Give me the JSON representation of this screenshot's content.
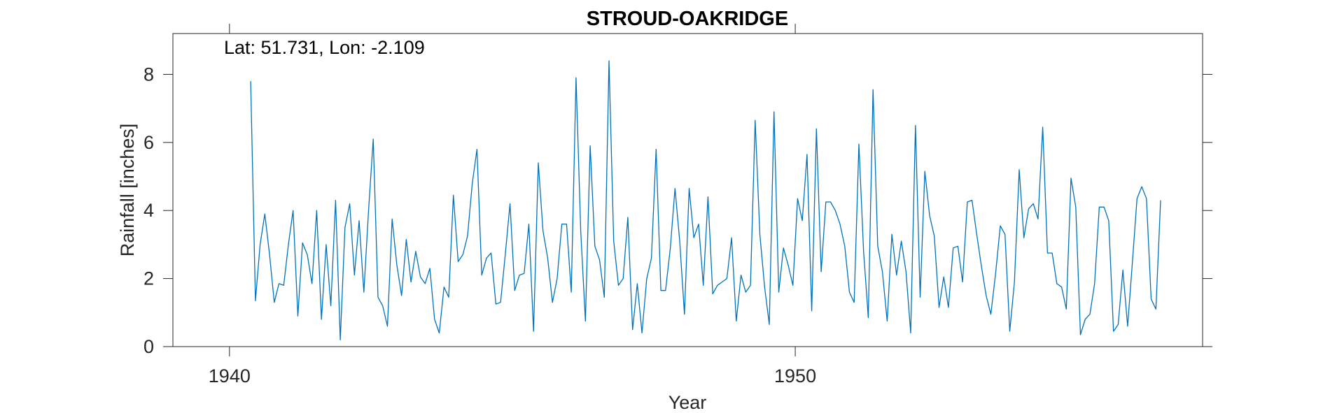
{
  "chart_data": {
    "type": "line",
    "title": "STROUD-OAKRIDGE",
    "annotation": "Lat: 51.731, Lon: -2.109",
    "xlabel": "Year",
    "ylabel": "Rainfall [inches]",
    "xlim": [
      1939.0,
      1957.2
    ],
    "ylim": [
      0,
      9.2
    ],
    "xticks": [
      1940,
      1950
    ],
    "xtick_labels": [
      "1940",
      "1950"
    ],
    "yticks": [
      0,
      2,
      4,
      6,
      8
    ],
    "ytick_labels": [
      "0",
      "2",
      "4",
      "6",
      "8"
    ],
    "grid": false,
    "line_color": "#0072BD",
    "series": [
      {
        "x_start": 1940.375,
        "x_step": 0.08333,
        "values": [
          7.8,
          1.35,
          3.0,
          3.9,
          2.7,
          1.3,
          1.85,
          1.8,
          3.0,
          4.0,
          0.9,
          3.05,
          2.7,
          1.85,
          4.0,
          0.8,
          3.0,
          1.2,
          4.3,
          0.2,
          3.5,
          4.2,
          2.1,
          3.7,
          1.6,
          4.0,
          6.1,
          1.45,
          1.2,
          0.6,
          3.75,
          2.4,
          1.5,
          3.15,
          1.9,
          2.8,
          2.05,
          1.85,
          2.3,
          0.8,
          0.4,
          1.75,
          1.45,
          4.45,
          2.5,
          2.7,
          3.25,
          4.8,
          5.8,
          2.1,
          2.6,
          2.75,
          1.25,
          1.3,
          2.7,
          4.2,
          1.65,
          2.1,
          2.15,
          3.6,
          0.45,
          5.4,
          3.4,
          2.6,
          1.3,
          2.0,
          3.6,
          3.6,
          1.6,
          7.9,
          3.4,
          0.75,
          5.9,
          2.95,
          2.55,
          1.45,
          8.4,
          3.1,
          1.8,
          2.0,
          3.8,
          0.5,
          1.85,
          0.4,
          2.0,
          2.6,
          5.8,
          1.65,
          1.65,
          2.9,
          4.65,
          3.1,
          0.95,
          4.65,
          3.2,
          3.6,
          1.8,
          4.4,
          1.55,
          1.8,
          1.9,
          2.0,
          3.2,
          0.75,
          2.1,
          1.6,
          1.8,
          6.65,
          3.3,
          1.75,
          0.65,
          6.9,
          1.6,
          2.9,
          2.4,
          1.8,
          4.35,
          3.7,
          5.65,
          1.05,
          6.4,
          2.2,
          4.25,
          4.25,
          4.0,
          3.6,
          2.95,
          1.6,
          1.3,
          5.95,
          2.8,
          0.85,
          7.55,
          2.95,
          2.2,
          0.75,
          3.3,
          2.1,
          3.1,
          2.2,
          0.4,
          6.5,
          1.45,
          5.15,
          3.85,
          3.25,
          1.15,
          2.05,
          1.15,
          2.9,
          2.95,
          1.9,
          4.25,
          4.3,
          3.3,
          2.35,
          1.5,
          0.95,
          2.15,
          3.55,
          3.3,
          0.45,
          1.9,
          5.2,
          3.2,
          4.05,
          4.2,
          3.75,
          6.45,
          2.75,
          2.75,
          1.85,
          1.75,
          1.1,
          4.95,
          4.1,
          0.35,
          0.8,
          0.95,
          1.85,
          4.1,
          4.1,
          3.7,
          0.45,
          0.65,
          2.25,
          0.6,
          2.45,
          4.35,
          4.7,
          4.35,
          1.4,
          1.1,
          4.3
        ]
      }
    ]
  }
}
